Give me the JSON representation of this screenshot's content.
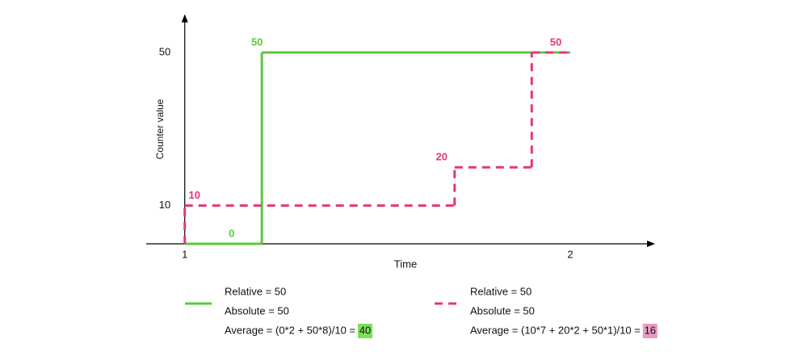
{
  "chart_data": {
    "type": "step",
    "x_label": "Time",
    "y_label": "Counter value",
    "xlim": [
      0.9,
      2.22
    ],
    "ylim": [
      0,
      60
    ],
    "xticks": [
      1,
      2
    ],
    "yticks": [
      10,
      50
    ],
    "series": [
      {
        "color": "#5cc83c",
        "dashed": false,
        "x": [
          1,
          1.2
        ],
        "values": [
          0,
          50
        ],
        "notes": [
          "Relative = 50",
          "Absolute = 50"
        ],
        "average_label": "Average = (0*2 + 50*8)/10 =",
        "average": 40,
        "highlight": "#7ee05a"
      },
      {
        "color": "#e5357c",
        "dashed": true,
        "x": [
          1,
          1.7,
          1.9
        ],
        "values": [
          10,
          20,
          50
        ],
        "notes": [
          "Relative = 50",
          "Absolute = 50"
        ],
        "average_label": "Average = (10*7 + 20*2 + 50*1)/10 =",
        "average": 16,
        "highlight": "#e89ac3"
      }
    ]
  }
}
